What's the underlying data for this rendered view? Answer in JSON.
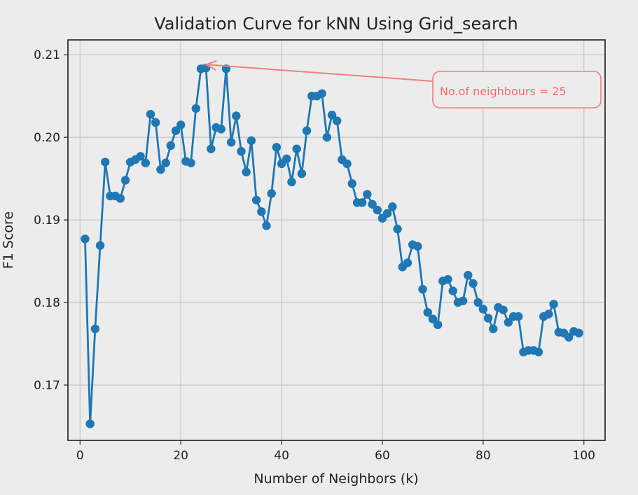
{
  "chart_data": {
    "type": "line",
    "title": "Validation Curve for kNN Using Grid_search",
    "xlabel": "Number of Neighbors (k)",
    "ylabel": "F1 Score",
    "xlim": [
      -2.4,
      104.2
    ],
    "ylim": [
      0.1633,
      0.2118
    ],
    "xticks": [
      0,
      20,
      40,
      60,
      80,
      100
    ],
    "xtick_labels": [
      "0",
      "20",
      "40",
      "60",
      "80",
      "100"
    ],
    "yticks": [
      0.17,
      0.18,
      0.19,
      0.2,
      0.21
    ],
    "ytick_labels": [
      "0.17",
      "0.18",
      "0.19",
      "0.20",
      "0.21"
    ],
    "grid": true,
    "series": [
      {
        "color": "#1f77b4",
        "marker": "circle",
        "x": [
          1,
          2,
          3,
          4,
          5,
          6,
          7,
          8,
          9,
          10,
          11,
          12,
          13,
          14,
          15,
          16,
          17,
          18,
          19,
          20,
          21,
          22,
          23,
          24,
          25,
          26,
          27,
          28,
          29,
          30,
          31,
          32,
          33,
          34,
          35,
          36,
          37,
          38,
          39,
          40,
          41,
          42,
          43,
          44,
          45,
          46,
          47,
          48,
          49,
          50,
          51,
          52,
          53,
          54,
          55,
          56,
          57,
          58,
          59,
          60,
          61,
          62,
          63,
          64,
          65,
          66,
          67,
          68,
          69,
          70,
          71,
          72,
          73,
          74,
          75,
          76,
          77,
          78,
          79,
          80,
          81,
          82,
          83,
          84,
          85,
          86,
          87,
          88,
          89,
          90,
          91,
          92,
          93,
          94,
          95,
          96,
          97,
          98,
          99
        ],
        "y": [
          0.1877,
          0.1653,
          0.1768,
          0.1869,
          0.197,
          0.1929,
          0.1929,
          0.1926,
          0.1948,
          0.197,
          0.1973,
          0.1977,
          0.1969,
          0.2028,
          0.2018,
          0.1961,
          0.1969,
          0.199,
          0.2008,
          0.2015,
          0.1971,
          0.1969,
          0.2035,
          0.2083,
          0.2084,
          0.1986,
          0.2012,
          0.201,
          0.2083,
          0.1994,
          0.2026,
          0.1983,
          0.1958,
          0.1996,
          0.1924,
          0.191,
          0.1893,
          0.1932,
          0.1988,
          0.1968,
          0.1974,
          0.1946,
          0.1986,
          0.1956,
          0.2008,
          0.205,
          0.205,
          0.2053,
          0.2,
          0.2027,
          0.202,
          0.1973,
          0.1968,
          0.1944,
          0.1921,
          0.1921,
          0.1931,
          0.1919,
          0.1912,
          0.1902,
          0.1908,
          0.1916,
          0.1889,
          0.1843,
          0.1848,
          0.187,
          0.1868,
          0.1816,
          0.1788,
          0.178,
          0.1773,
          0.1826,
          0.1828,
          0.1814,
          0.18,
          0.1802,
          0.1833,
          0.1823,
          0.18,
          0.1792,
          0.1781,
          0.1768,
          0.1794,
          0.1791,
          0.1776,
          0.1783,
          0.1783,
          0.174,
          0.1742,
          0.1742,
          0.174,
          0.1783,
          0.1786,
          0.1798,
          0.1764,
          0.1763,
          0.1758,
          0.1765,
          0.1763
        ]
      }
    ],
    "annotation": {
      "text": "No.of neighbours = 25",
      "xy": [
        25,
        0.2088
      ],
      "color": "#f08080"
    }
  }
}
